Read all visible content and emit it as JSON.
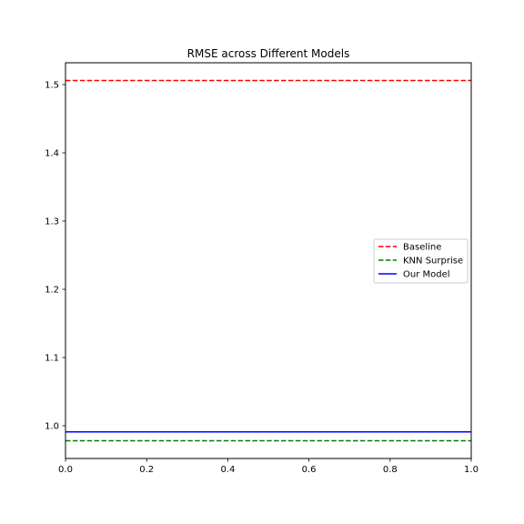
{
  "chart_data": {
    "type": "line",
    "title": "RMSE across Different Models",
    "xlabel": "",
    "ylabel": "",
    "xlim": [
      0.0,
      1.0
    ],
    "ylim": [
      0.952,
      1.532
    ],
    "x_ticks": [
      "0.0",
      "0.2",
      "0.4",
      "0.6",
      "0.8",
      "1.0"
    ],
    "y_ticks": [
      "1.0",
      "1.1",
      "1.2",
      "1.3",
      "1.4",
      "1.5"
    ],
    "grid": false,
    "legend_position": "center-right",
    "series": [
      {
        "name": "Baseline",
        "type": "horizontal-line",
        "y": 1.506,
        "style": "dashed",
        "color": "#ff0000"
      },
      {
        "name": "KNN Surprise",
        "type": "horizontal-line",
        "y": 0.978,
        "style": "dashed",
        "color": "#008000"
      },
      {
        "name": "Our Model",
        "type": "horizontal-line",
        "y": 0.991,
        "style": "solid",
        "color": "#0000ff"
      }
    ]
  }
}
